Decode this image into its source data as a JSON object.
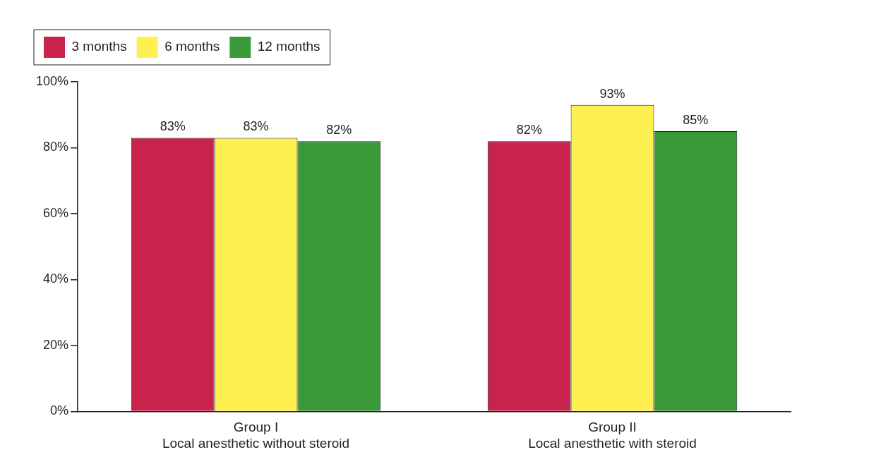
{
  "chart_data": {
    "type": "bar",
    "categories": [
      "Group I\nLocal anesthetic without steroid",
      "Group II\nLocal anesthetic with steroid"
    ],
    "series": [
      {
        "name": "3 months",
        "color": "#c8234a",
        "values": [
          83,
          82
        ],
        "value_labels": [
          "83%",
          "82%"
        ]
      },
      {
        "name": "6 months",
        "color": "#fef050",
        "values": [
          83,
          93
        ],
        "value_labels": [
          "83%",
          "93%"
        ]
      },
      {
        "name": "12 months",
        "color": "#3a9a3a",
        "values": [
          82,
          85
        ],
        "value_labels": [
          "82%",
          "85%"
        ]
      }
    ],
    "ylim": [
      0,
      100
    ],
    "yticks": [
      {
        "value": 0,
        "label": "0%"
      },
      {
        "value": 20,
        "label": "20%"
      },
      {
        "value": 40,
        "label": "40%"
      },
      {
        "value": 60,
        "label": "60%"
      },
      {
        "value": 80,
        "label": "80%"
      },
      {
        "value": 100,
        "label": "100%"
      }
    ],
    "grid": false,
    "legend": "top left"
  }
}
